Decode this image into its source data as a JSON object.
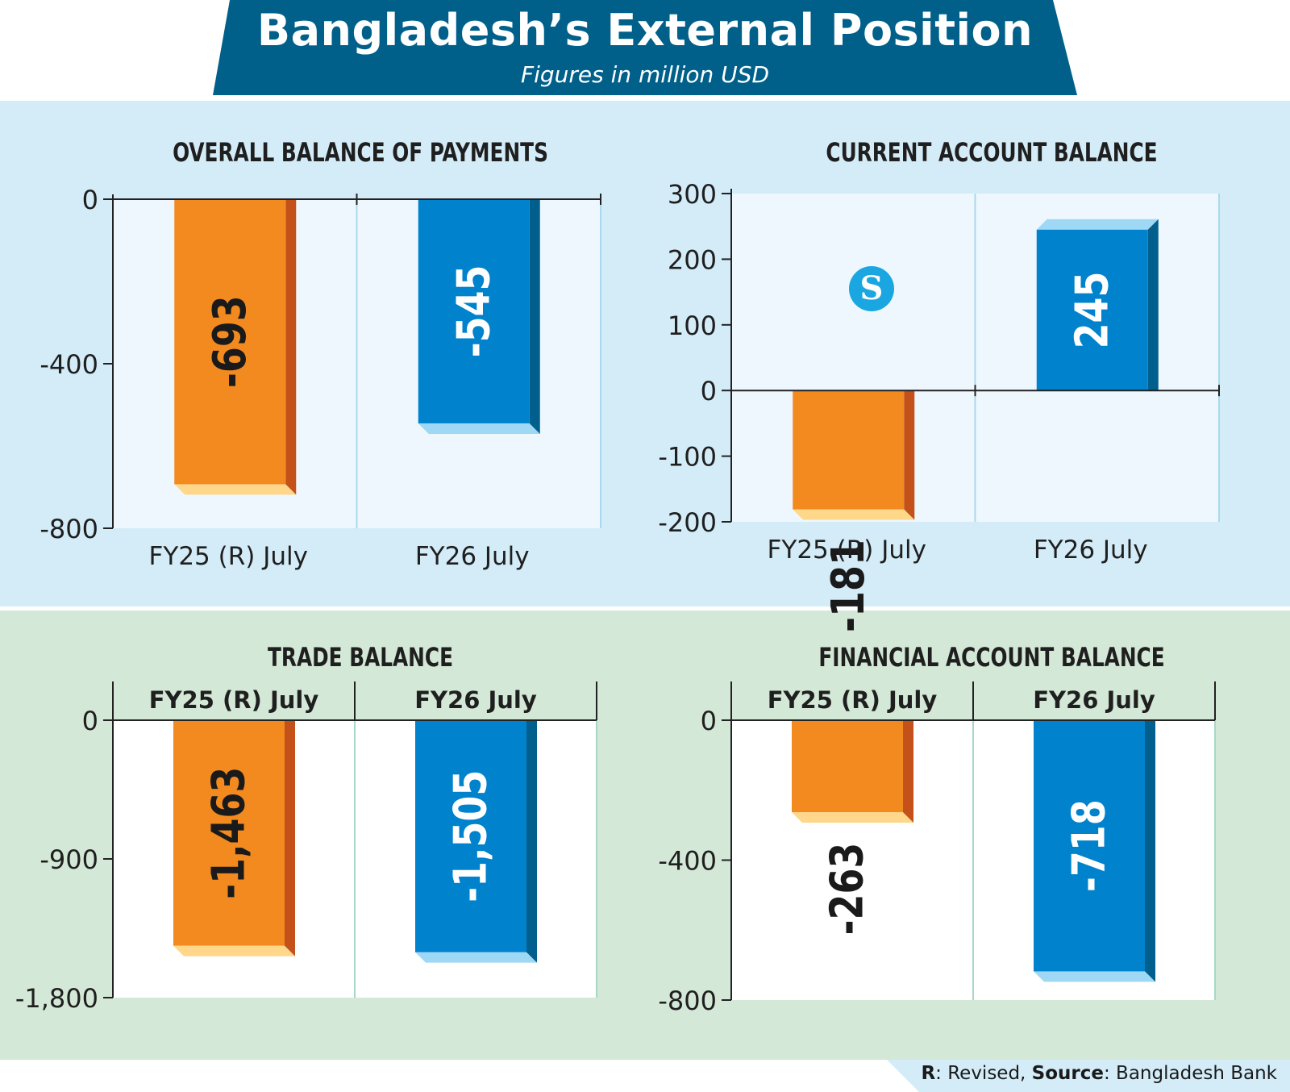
{
  "header": {
    "title": "Bangladesh’s External Position",
    "subtitle": "Figures in million USD",
    "banner_color": "#00608a"
  },
  "logo": {
    "icon": "daily-star-logo",
    "text": "S"
  },
  "footer": {
    "r_key": "R",
    "r_text": ": Revised, ",
    "source_key": "Source",
    "source_text": ": Bangladesh Bank"
  },
  "colors": {
    "orange": "#f28a1f",
    "orange_side": "#c4501a",
    "orange_bottom": "#ffd78a",
    "blue": "#0082cc",
    "blue_side": "#005f8c",
    "blue_bottom": "#9fd8f5"
  },
  "chart_data": [
    {
      "type": "bar",
      "title": "OVERALL BALANCE OF PAYMENTS",
      "categories": [
        "FY25 (R) July",
        "FY26 July"
      ],
      "values": [
        -693,
        -545
      ],
      "value_labels": [
        "-693",
        "-545"
      ],
      "ylim": [
        -800,
        0
      ],
      "yticks": [
        0,
        -400,
        -800
      ],
      "ytick_labels": [
        "0",
        "-400",
        "-800"
      ],
      "category_position": "bottom",
      "grid": false
    },
    {
      "type": "bar",
      "title": "CURRENT ACCOUNT BALANCE",
      "categories": [
        "FY25 (R) July",
        "FY26 July"
      ],
      "values": [
        -181,
        245
      ],
      "value_labels": [
        "-181",
        "245"
      ],
      "ylim": [
        -200,
        300
      ],
      "yticks": [
        300,
        200,
        100,
        0,
        -100,
        -200
      ],
      "ytick_labels": [
        "300",
        "200",
        "100",
        "0",
        "-100",
        "-200"
      ],
      "category_position": "bottom",
      "grid": false
    },
    {
      "type": "bar",
      "title": "TRADE BALANCE",
      "categories": [
        "FY25 (R) July",
        "FY26 July"
      ],
      "values": [
        -1463,
        -1505
      ],
      "value_labels": [
        "-1,463",
        "-1,505"
      ],
      "ylim": [
        -1800,
        0
      ],
      "yticks": [
        0,
        -900,
        -1800
      ],
      "ytick_labels": [
        "0",
        "-900",
        "-1,800"
      ],
      "category_position": "top",
      "grid": false
    },
    {
      "type": "bar",
      "title": "FINANCIAL ACCOUNT BALANCE",
      "categories": [
        "FY25 (R) July",
        "FY26 July"
      ],
      "values": [
        -263,
        -718
      ],
      "value_labels": [
        "-263",
        "-718"
      ],
      "ylim": [
        -800,
        0
      ],
      "yticks": [
        0,
        -400,
        -800
      ],
      "ytick_labels": [
        "0",
        "-400",
        "-800"
      ],
      "category_position": "top",
      "grid": false
    }
  ]
}
